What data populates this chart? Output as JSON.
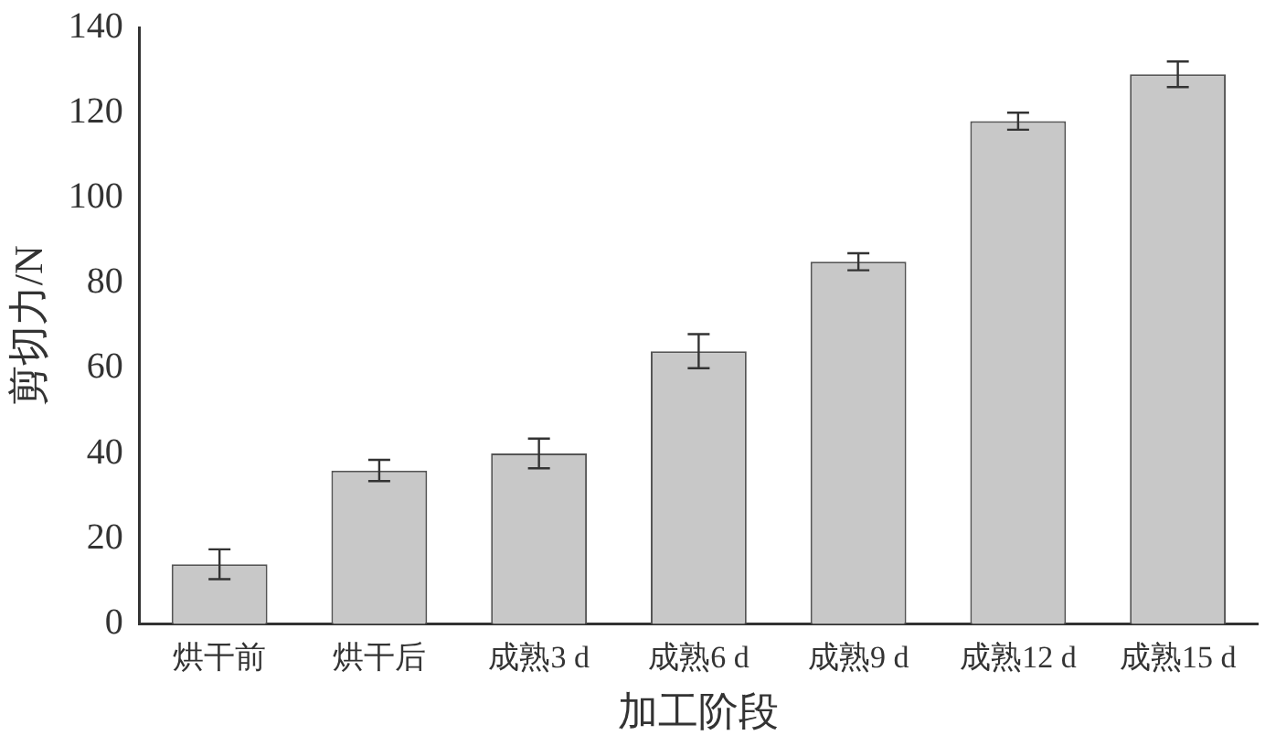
{
  "chart_data": {
    "type": "bar",
    "xlabel": "加工阶段",
    "ylabel": "剪切力/N",
    "categories": [
      "烘干前",
      "烘干后",
      "成熟3 d",
      "成熟6 d",
      "成熟9 d",
      "成熟12 d",
      "成熟15 d"
    ],
    "values": [
      14,
      36,
      40,
      64,
      85,
      118,
      129
    ],
    "errors": [
      3.5,
      2.5,
      3.5,
      4,
      2,
      2,
      3
    ],
    "color": "#c8c8c8",
    "ylim": [
      0,
      140
    ],
    "yticks": [
      0,
      20,
      40,
      60,
      80,
      100,
      120,
      140
    ],
    "grid": false,
    "legend": false
  }
}
